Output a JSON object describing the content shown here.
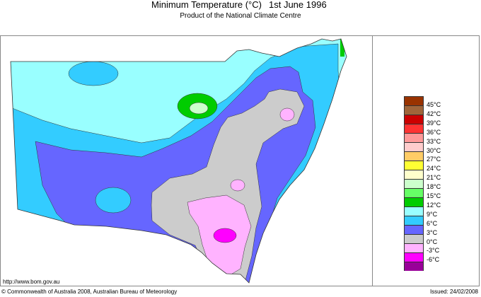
{
  "header": {
    "title": "Minimum Temperature (°C)",
    "date": "1st June 1996",
    "subtitle": "Product of the National Climate Centre"
  },
  "footer": {
    "url": "http://www.bom.gov.au",
    "copyright": "© Commonwealth of Australia 2008, Australian Bureau of Meteorology",
    "issued": "Issued: 24/02/2008"
  },
  "legend": {
    "colors": [
      "#993300",
      "#a0653a",
      "#cc0000",
      "#ff3333",
      "#ff9999",
      "#ffcccc",
      "#ffcc66",
      "#ffff33",
      "#ffffcc",
      "#ccffcc",
      "#66ff66",
      "#00cc00",
      "#99ffff",
      "#33ccff",
      "#6666ff",
      "#cccccc",
      "#ffb3ff",
      "#ff00ff",
      "#990099"
    ],
    "labels": [
      "45°C",
      "42°C",
      "39°C",
      "36°C",
      "33°C",
      "30°C",
      "27°C",
      "24°C",
      "21°C",
      "18°C",
      "15°C",
      "12°C",
      "9°C",
      "6°C",
      "3°C",
      "0°C",
      "-3°C",
      "-6°C"
    ]
  }
}
